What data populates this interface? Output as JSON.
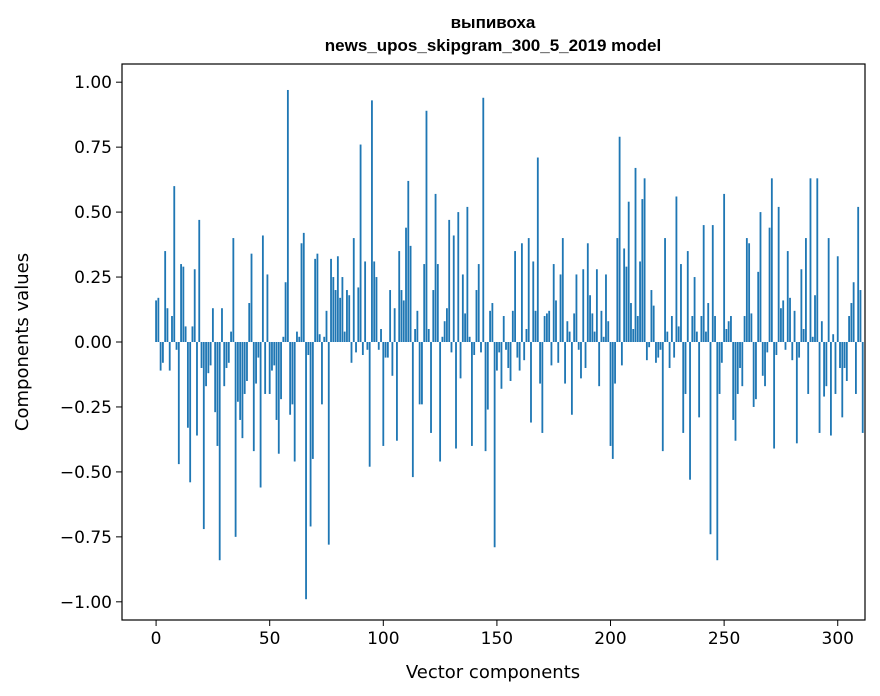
{
  "chart_data": {
    "type": "bar",
    "title": "выпивоха",
    "subtitle": "news_upos_skipgram_300_5_2019 model",
    "xlabel": "Vector components",
    "ylabel": "Components values",
    "xlim": [
      -15,
      312
    ],
    "ylim": [
      -1.07,
      1.07
    ],
    "xticks": [
      0,
      50,
      100,
      150,
      200,
      250,
      300
    ],
    "xtick_labels": [
      "0",
      "50",
      "100",
      "150",
      "200",
      "250",
      "300"
    ],
    "yticks": [
      1.0,
      0.75,
      0.5,
      0.25,
      0.0,
      -0.25,
      -0.5,
      -0.75,
      -1.0
    ],
    "ytick_labels": [
      "1.00",
      "0.75",
      "0.50",
      "0.25",
      "0.00",
      "−0.25",
      "−0.50",
      "−0.75",
      "−1.00"
    ],
    "bar_color": "#1f77b4",
    "grid": false,
    "values": [
      0.16,
      0.17,
      -0.11,
      -0.08,
      0.35,
      0.13,
      -0.11,
      0.1,
      0.6,
      -0.03,
      -0.47,
      0.3,
      0.29,
      0.06,
      -0.33,
      -0.54,
      0.06,
      0.28,
      -0.36,
      0.47,
      -0.1,
      -0.72,
      -0.17,
      -0.12,
      -0.09,
      0.13,
      -0.27,
      -0.4,
      -0.84,
      0.13,
      -0.17,
      -0.1,
      -0.08,
      0.04,
      0.4,
      -0.75,
      -0.23,
      -0.3,
      -0.37,
      -0.2,
      -0.15,
      0.15,
      0.34,
      -0.42,
      -0.16,
      -0.06,
      -0.56,
      0.41,
      -0.2,
      0.26,
      -0.2,
      -0.11,
      -0.09,
      -0.3,
      -0.43,
      -0.22,
      0.02,
      0.23,
      0.97,
      -0.28,
      -0.24,
      -0.46,
      0.04,
      0.02,
      0.38,
      0.42,
      -0.99,
      -0.05,
      -0.71,
      -0.45,
      0.32,
      0.34,
      0.03,
      -0.24,
      0.02,
      0.12,
      -0.78,
      0.32,
      0.25,
      0.2,
      0.33,
      0.17,
      0.25,
      0.04,
      0.2,
      0.18,
      -0.08,
      0.4,
      -0.04,
      0.21,
      0.76,
      -0.05,
      0.31,
      -0.03,
      -0.48,
      0.93,
      0.31,
      0.25,
      -0.03,
      0.05,
      -0.4,
      -0.06,
      -0.06,
      0.2,
      -0.13,
      0.13,
      -0.38,
      0.35,
      0.2,
      0.16,
      0.44,
      0.62,
      0.37,
      -0.52,
      0.05,
      0.12,
      -0.24,
      -0.24,
      0.3,
      0.89,
      0.05,
      -0.35,
      0.2,
      0.57,
      0.3,
      -0.46,
      0.02,
      0.08,
      0.13,
      0.47,
      -0.04,
      0.41,
      -0.41,
      0.5,
      -0.14,
      0.26,
      0.11,
      0.52,
      0.02,
      -0.4,
      -0.05,
      0.2,
      0.3,
      -0.04,
      0.94,
      -0.42,
      -0.26,
      0.12,
      0.15,
      -0.79,
      -0.11,
      -0.04,
      -0.18,
      0.1,
      -0.03,
      -0.1,
      -0.15,
      0.12,
      0.35,
      -0.06,
      -0.11,
      0.38,
      -0.07,
      0.05,
      0.4,
      -0.31,
      0.31,
      0.12,
      0.71,
      -0.16,
      -0.35,
      0.1,
      0.11,
      0.12,
      -0.09,
      0.3,
      0.16,
      -0.08,
      0.26,
      0.4,
      -0.16,
      0.08,
      0.04,
      -0.28,
      0.11,
      0.26,
      -0.03,
      -0.14,
      0.28,
      -0.1,
      0.38,
      0.18,
      0.11,
      0.04,
      0.28,
      -0.17,
      0.12,
      0.02,
      0.26,
      0.08,
      -0.4,
      -0.45,
      -0.16,
      0.4,
      0.79,
      -0.09,
      0.36,
      0.29,
      0.54,
      0.15,
      0.05,
      0.67,
      0.1,
      0.31,
      0.55,
      0.63,
      -0.07,
      -0.02,
      0.2,
      0.14,
      -0.08,
      -0.06,
      -0.03,
      -0.42,
      0.4,
      0.04,
      -0.1,
      0.1,
      -0.06,
      0.56,
      0.06,
      0.3,
      -0.35,
      -0.2,
      0.35,
      -0.53,
      0.1,
      0.25,
      0.04,
      -0.29,
      0.1,
      0.45,
      0.04,
      0.15,
      -0.74,
      0.45,
      0.1,
      -0.84,
      -0.2,
      -0.08,
      0.57,
      0.05,
      0.08,
      0.1,
      -0.3,
      -0.38,
      -0.2,
      -0.1,
      -0.17,
      0.1,
      0.4,
      0.38,
      0.11,
      -0.25,
      -0.22,
      0.27,
      0.5,
      -0.13,
      -0.17,
      -0.04,
      0.44,
      0.63,
      -0.41,
      -0.05,
      0.52,
      0.13,
      0.16,
      -0.03,
      0.35,
      0.17,
      -0.07,
      0.12,
      -0.39,
      -0.06,
      0.28,
      0.05,
      0.4,
      -0.2,
      0.63,
      0.02,
      0.18,
      0.63,
      -0.35,
      0.08,
      -0.21,
      -0.17,
      0.4,
      -0.36,
      0.03,
      -0.2,
      0.33,
      -0.1,
      -0.29,
      -0.1,
      -0.15,
      0.1,
      0.15,
      0.23,
      -0.2,
      0.52,
      0.2,
      -0.35
    ]
  }
}
